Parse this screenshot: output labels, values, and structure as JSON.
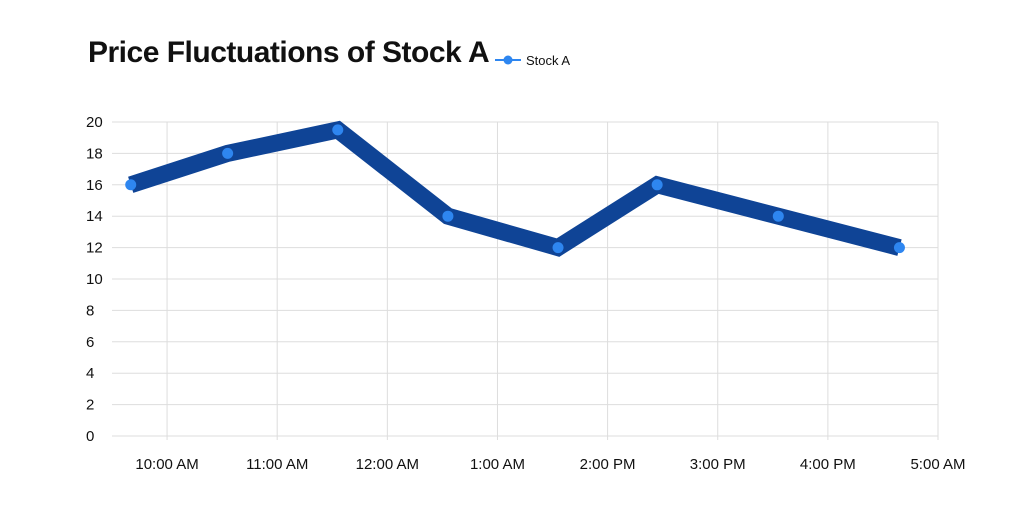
{
  "chart_data": {
    "type": "line",
    "title": "Price Fluctuations of Stock A",
    "xlabel": "",
    "ylabel": "",
    "x_ticks": [
      "10:00 AM",
      "11:00 AM",
      "12:00 AM",
      "1:00 AM",
      "2:00 PM",
      "3:00 PM",
      "4:00 PM",
      "5:00 AM"
    ],
    "ylim": [
      0,
      20
    ],
    "y_ticks": [
      0,
      2,
      4,
      6,
      8,
      10,
      12,
      14,
      16,
      18,
      20
    ],
    "grid": true,
    "legend": "top, next to title",
    "series": [
      {
        "name": "Stock A",
        "x": [
          9.67,
          10.55,
          11.55,
          12.55,
          13.55,
          14.45,
          15.55,
          16.65
        ],
        "values": [
          16,
          18,
          19.5,
          14,
          12,
          16,
          14,
          12
        ]
      }
    ]
  },
  "colors": {
    "line": "#0f4496",
    "marker": "#2e86f0",
    "grid": "#dddddd",
    "text": "#111111"
  }
}
